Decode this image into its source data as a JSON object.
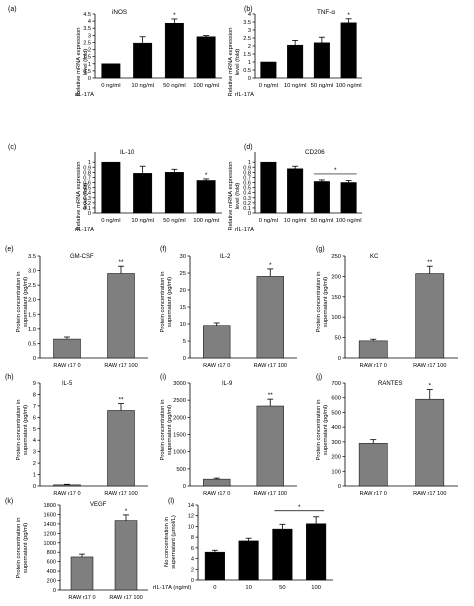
{
  "chart_data": [
    {
      "type": "bar",
      "panel": "(a)",
      "title": "iNOS",
      "ylabel": "Relative mRNA expression level (fold)",
      "xlabel_prefix": "rIL-17A",
      "categories": [
        "0 ng/ml",
        "10 ng/ml",
        "50 ng/ml",
        "100 ng/ml"
      ],
      "values": [
        1.0,
        2.45,
        3.85,
        2.9
      ],
      "errors": [
        0.0,
        0.45,
        0.3,
        0.08
      ],
      "significance": [
        "",
        "",
        "*",
        ""
      ],
      "ylim": [
        0,
        4.5
      ],
      "yticks": [
        "0",
        "0.5",
        "1",
        "1.5",
        "2",
        "2.5",
        "3",
        "3.5",
        "4",
        "4.5"
      ],
      "bar_color": "#000000"
    },
    {
      "type": "bar",
      "panel": "(b)",
      "title": "TNF-α",
      "ylabel": "Relative mRNA expression level (fold)",
      "xlabel_prefix": "rIL-17A",
      "categories": [
        "0 ng/ml",
        "10 ng/ml",
        "50 ng/ml",
        "100 ng/ml"
      ],
      "values": [
        1.0,
        2.05,
        2.2,
        3.45
      ],
      "errors": [
        0.0,
        0.3,
        0.35,
        0.25
      ],
      "significance": [
        "",
        "",
        "",
        "*"
      ],
      "ylim": [
        0,
        4
      ],
      "yticks": [
        "0",
        "0.5",
        "1",
        "1.5",
        "2",
        "2.5",
        "3",
        "3.5",
        "4"
      ],
      "bar_color": "#000000"
    },
    {
      "type": "bar",
      "panel": "(c)",
      "title": "IL-10",
      "ylabel": "Relative mRNA expression level (fold)",
      "xlabel_prefix": "rIL-17A",
      "categories": [
        "0 ng/ml",
        "10 ng/ml",
        "50 ng/ml",
        "100 ng/ml"
      ],
      "values": [
        1.0,
        0.78,
        0.8,
        0.64
      ],
      "errors": [
        0.0,
        0.14,
        0.06,
        0.03
      ],
      "significance": [
        "",
        "",
        "",
        "*"
      ],
      "ylim": [
        0,
        1.2
      ],
      "yticks": [
        "0",
        "0.1",
        "0.2",
        "0.3",
        "0.4",
        "0.5",
        "0.6",
        "0.7",
        "0.8",
        "0.9",
        "1"
      ],
      "bar_color": "#000000"
    },
    {
      "type": "bar",
      "panel": "(d)",
      "title": "CD206",
      "ylabel": "Relative mRNA expression level (fold)",
      "xlabel_prefix": "rIL-17A",
      "categories": [
        "0 ng/ml",
        "10 ng/ml",
        "50 ng/ml",
        "100 ng/ml"
      ],
      "values": [
        1.0,
        0.87,
        0.62,
        0.6
      ],
      "errors": [
        0.0,
        0.05,
        0.03,
        0.04
      ],
      "significance_bracket": {
        "from": 2,
        "to": 3,
        "label": "*"
      },
      "ylim": [
        0,
        1.2
      ],
      "yticks": [
        "0",
        "0.1",
        "0.2",
        "0.3",
        "0.4",
        "0.5",
        "0.6",
        "0.7",
        "0.8",
        "0.9",
        "1"
      ],
      "bar_color": "#000000"
    },
    {
      "type": "bar",
      "panel": "(e)",
      "title": "GM-CSF",
      "ylabel": "Protein concentration in supernatant (pg/ml)",
      "categories": [
        "RAW r17 0",
        "RAW r17 100"
      ],
      "values": [
        0.65,
        2.9
      ],
      "errors": [
        0.07,
        0.25
      ],
      "significance": [
        "",
        "**"
      ],
      "ylim": [
        0,
        3.5
      ],
      "yticks": [
        "0",
        "0.5",
        "1.0",
        "1.5",
        "2.0",
        "2.5",
        "3.0",
        "3.5"
      ],
      "bar_color": "#7f7f7f"
    },
    {
      "type": "bar",
      "panel": "(f)",
      "title": "IL-2",
      "ylabel": "Protein concentration in supernatant (pg/ml)",
      "categories": [
        "RAW r17 0",
        "RAW r17 100"
      ],
      "values": [
        9.5,
        24.0
      ],
      "errors": [
        0.8,
        2.2
      ],
      "significance": [
        "",
        "*"
      ],
      "ylim": [
        0,
        30
      ],
      "yticks": [
        "0",
        "5",
        "10",
        "15",
        "20",
        "25",
        "30"
      ],
      "bar_color": "#7f7f7f"
    },
    {
      "type": "bar",
      "panel": "(g)",
      "title": "KC",
      "ylabel": "Protein concentration in supernatant (pg/ml)",
      "categories": [
        "RAW r17 0",
        "RAW r17 100"
      ],
      "values": [
        42,
        207
      ],
      "errors": [
        4,
        18
      ],
      "significance": [
        "",
        "**"
      ],
      "ylim": [
        0,
        250
      ],
      "yticks": [
        "0",
        "50",
        "100",
        "150",
        "200",
        "250"
      ],
      "bar_color": "#7f7f7f"
    },
    {
      "type": "bar",
      "panel": "(h)",
      "title": "IL-5",
      "ylabel": "Protein concentration in supernatant (pg/ml)",
      "categories": [
        "RAW r17 0",
        "RAW r17 100"
      ],
      "values": [
        0.1,
        6.6
      ],
      "errors": [
        0.05,
        0.6
      ],
      "significance": [
        "",
        "**"
      ],
      "ylim": [
        0,
        9
      ],
      "yticks": [
        "0",
        "1",
        "2",
        "3",
        "4",
        "5",
        "6",
        "7",
        "8",
        "9"
      ],
      "bar_color": "#7f7f7f"
    },
    {
      "type": "bar",
      "panel": "(i)",
      "title": "IL-9",
      "ylabel": "Protein concentration in supernatant (pg/ml)",
      "categories": [
        "RAW r17 0",
        "RAW r17 100"
      ],
      "values": [
        200,
        2330
      ],
      "errors": [
        30,
        200
      ],
      "significance": [
        "",
        "**"
      ],
      "ylim": [
        0,
        3000
      ],
      "yticks": [
        "0",
        "500",
        "1000",
        "1500",
        "2000",
        "2500",
        "3000"
      ],
      "bar_color": "#7f7f7f"
    },
    {
      "type": "bar",
      "panel": "(j)",
      "title": "RANTES",
      "ylabel": "Protein concentration in supernatant (pg/ml)",
      "categories": [
        "RAW r17 0",
        "RAW r17 100"
      ],
      "values": [
        290,
        590
      ],
      "errors": [
        25,
        65
      ],
      "significance": [
        "",
        "*"
      ],
      "ylim": [
        0,
        700
      ],
      "yticks": [
        "0",
        "100",
        "200",
        "300",
        "400",
        "500",
        "600",
        "700"
      ],
      "bar_color": "#7f7f7f"
    },
    {
      "type": "bar",
      "panel": "(k)",
      "title": "VEGF",
      "ylabel": "Protein concentration in supernatant (pg/ml)",
      "categories": [
        "RAW r17 0",
        "RAW r17 100"
      ],
      "values": [
        700,
        1470
      ],
      "errors": [
        60,
        120
      ],
      "significance": [
        "",
        "*"
      ],
      "ylim": [
        0,
        1800
      ],
      "yticks": [
        "0",
        "200",
        "400",
        "600",
        "800",
        "1000",
        "1200",
        "1400",
        "1600",
        "1800"
      ],
      "bar_color": "#7f7f7f"
    },
    {
      "type": "bar",
      "panel": "(l)",
      "title": "",
      "ylabel": "No concentration in supernatant (μmol/L)",
      "xlabel_prefix": "rIL-17A (ng/ml)",
      "categories": [
        "0",
        "10",
        "50",
        "100"
      ],
      "values": [
        5.2,
        7.3,
        9.5,
        10.5
      ],
      "errors": [
        0.35,
        0.5,
        0.9,
        1.3
      ],
      "significance_bracket": {
        "from": 2,
        "to": 3,
        "label": "*"
      },
      "ylim": [
        0,
        14
      ],
      "yticks": [
        "0",
        "2",
        "4",
        "6",
        "8",
        "10",
        "12",
        "14"
      ],
      "bar_color": "#000000"
    }
  ]
}
